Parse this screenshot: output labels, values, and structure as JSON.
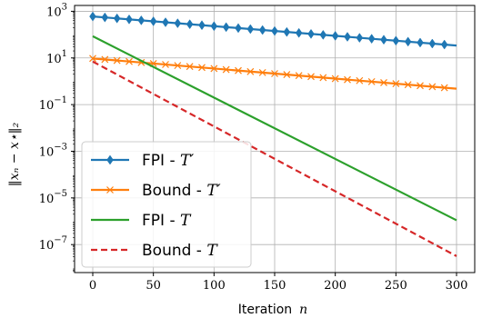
{
  "chart_data": {
    "type": "line",
    "xlabel": "Iteration",
    "xlabel_math": "n",
    "ylabel": "‖xₙ − x⋆‖₂",
    "yscale": "log",
    "xlim": [
      -15,
      315
    ],
    "ylim_exp": [
      -8.2,
      3.25
    ],
    "grid": true,
    "legend_position": "lower-left",
    "x_ticks": [
      0,
      50,
      100,
      150,
      200,
      250,
      300
    ],
    "y_ticks": [
      {
        "exp": 3,
        "label": "3"
      },
      {
        "exp": 1,
        "label": "1"
      },
      {
        "exp": -1,
        "label": "−1"
      },
      {
        "exp": -3,
        "label": "−3"
      },
      {
        "exp": -5,
        "label": "−5"
      },
      {
        "exp": -7,
        "label": "−7"
      }
    ],
    "series": [
      {
        "name": "FPI - ",
        "name_math": "T′",
        "color": "#1f77b4",
        "style": "solid",
        "marker": "diamond",
        "x": [
          0,
          300
        ],
        "y": [
          600,
          34
        ]
      },
      {
        "name": "Bound - ",
        "name_math": "T′",
        "color": "#ff7f0e",
        "style": "solid",
        "marker": "x",
        "x": [
          0,
          300
        ],
        "y": [
          9.5,
          0.48
        ]
      },
      {
        "name": "FPI - ",
        "name_math": "T",
        "color": "#2ca02c",
        "style": "solid",
        "marker": "none",
        "x": [
          0,
          300
        ],
        "y": [
          85,
          1.1e-06
        ]
      },
      {
        "name": "Bound - ",
        "name_math": "T",
        "color": "#d62728",
        "style": "dashed",
        "marker": "none",
        "x": [
          0,
          300
        ],
        "y": [
          7,
          3.2e-08
        ]
      }
    ]
  }
}
